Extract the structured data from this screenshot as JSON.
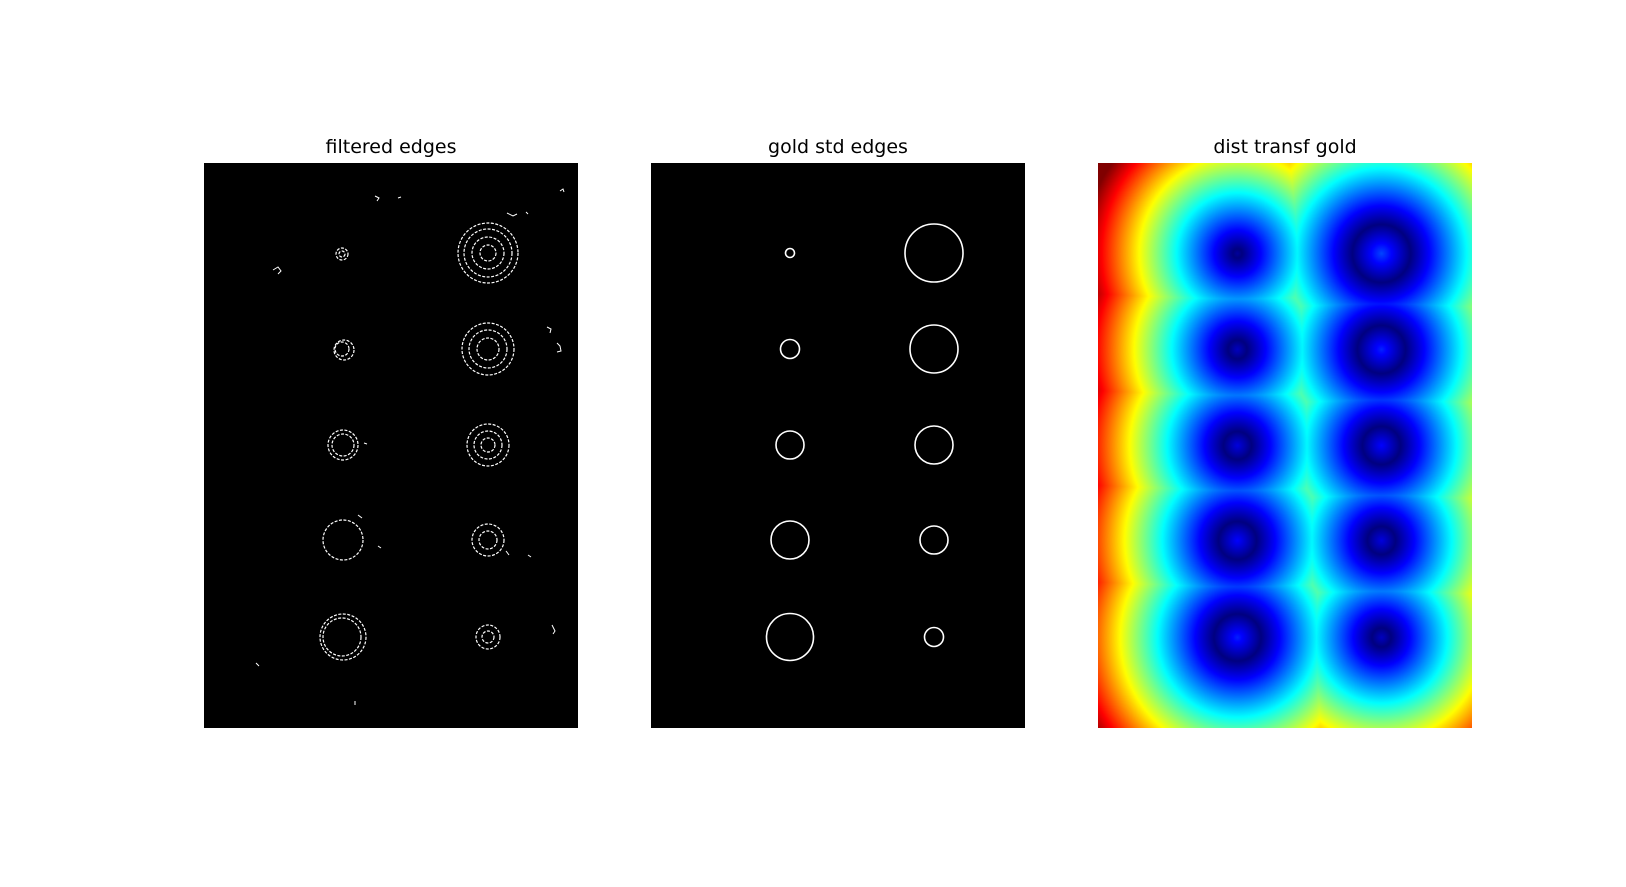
{
  "panels": [
    {
      "title": "filtered edges"
    },
    {
      "title": "gold std edges"
    },
    {
      "title": "dist transf gold"
    }
  ],
  "colormap": "jet"
}
